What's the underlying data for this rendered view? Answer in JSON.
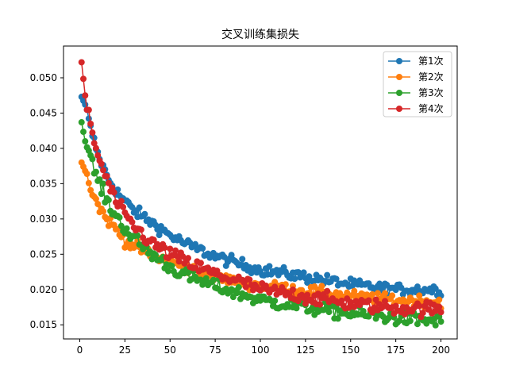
{
  "chart_data": {
    "type": "line",
    "title": "交叉训练集损失",
    "xlabel": "",
    "ylabel": "",
    "xlim": [
      -9,
      209
    ],
    "ylim": [
      0.013,
      0.0545
    ],
    "xticks": [
      0,
      25,
      50,
      75,
      100,
      125,
      150,
      175,
      200
    ],
    "yticks": [
      0.015,
      0.02,
      0.025,
      0.03,
      0.035,
      0.04,
      0.045,
      0.05
    ],
    "ytick_labels": [
      "0.015",
      "0.020",
      "0.025",
      "0.030",
      "0.035",
      "0.040",
      "0.045",
      "0.050"
    ],
    "grid": false,
    "legend_position": "top-right",
    "marker": "circle",
    "x": {
      "start": 1,
      "end": 200,
      "step": 1
    },
    "series": [
      {
        "name": "第1次",
        "color": "#1f77b4",
        "keypoints": [
          [
            1,
            0.0473
          ],
          [
            3,
            0.0462
          ],
          [
            6,
            0.0428
          ],
          [
            10,
            0.0392
          ],
          [
            15,
            0.0361
          ],
          [
            20,
            0.034
          ],
          [
            25,
            0.0325
          ],
          [
            30,
            0.0312
          ],
          [
            40,
            0.0295
          ],
          [
            50,
            0.0277
          ],
          [
            60,
            0.0263
          ],
          [
            75,
            0.0247
          ],
          [
            90,
            0.0235
          ],
          [
            100,
            0.0228
          ],
          [
            125,
            0.0218
          ],
          [
            150,
            0.0207
          ],
          [
            175,
            0.02
          ],
          [
            200,
            0.02
          ]
        ],
        "noise": 0.0004
      },
      {
        "name": "第2次",
        "color": "#ff7f0e",
        "keypoints": [
          [
            1,
            0.038
          ],
          [
            3,
            0.0368
          ],
          [
            6,
            0.0345
          ],
          [
            10,
            0.032
          ],
          [
            15,
            0.03
          ],
          [
            20,
            0.0286
          ],
          [
            25,
            0.027
          ],
          [
            30,
            0.0262
          ],
          [
            40,
            0.0248
          ],
          [
            50,
            0.024
          ],
          [
            60,
            0.023
          ],
          [
            75,
            0.0218
          ],
          [
            90,
            0.021
          ],
          [
            100,
            0.0205
          ],
          [
            125,
            0.0198
          ],
          [
            150,
            0.019
          ],
          [
            175,
            0.0185
          ],
          [
            200,
            0.0183
          ]
        ],
        "noise": 0.0004
      },
      {
        "name": "第3次",
        "color": "#2ca02c",
        "keypoints": [
          [
            1,
            0.0437
          ],
          [
            3,
            0.041
          ],
          [
            6,
            0.0385
          ],
          [
            10,
            0.0355
          ],
          [
            15,
            0.0325
          ],
          [
            20,
            0.0305
          ],
          [
            25,
            0.0287
          ],
          [
            30,
            0.0272
          ],
          [
            40,
            0.025
          ],
          [
            50,
            0.0232
          ],
          [
            60,
            0.0218
          ],
          [
            75,
            0.0205
          ],
          [
            90,
            0.0193
          ],
          [
            100,
            0.0185
          ],
          [
            125,
            0.0175
          ],
          [
            150,
            0.0166
          ],
          [
            175,
            0.016
          ],
          [
            200,
            0.0155
          ]
        ],
        "noise": 0.0005
      },
      {
        "name": "第4次",
        "color": "#d62728",
        "keypoints": [
          [
            1,
            0.0522
          ],
          [
            3,
            0.0475
          ],
          [
            6,
            0.043
          ],
          [
            10,
            0.039
          ],
          [
            15,
            0.0355
          ],
          [
            20,
            0.0325
          ],
          [
            25,
            0.0305
          ],
          [
            30,
            0.029
          ],
          [
            40,
            0.0265
          ],
          [
            50,
            0.025
          ],
          [
            60,
            0.0237
          ],
          [
            75,
            0.0222
          ],
          [
            90,
            0.021
          ],
          [
            100,
            0.02
          ],
          [
            125,
            0.019
          ],
          [
            150,
            0.018
          ],
          [
            175,
            0.0174
          ],
          [
            200,
            0.0172
          ]
        ],
        "noise": 0.0005
      }
    ]
  }
}
